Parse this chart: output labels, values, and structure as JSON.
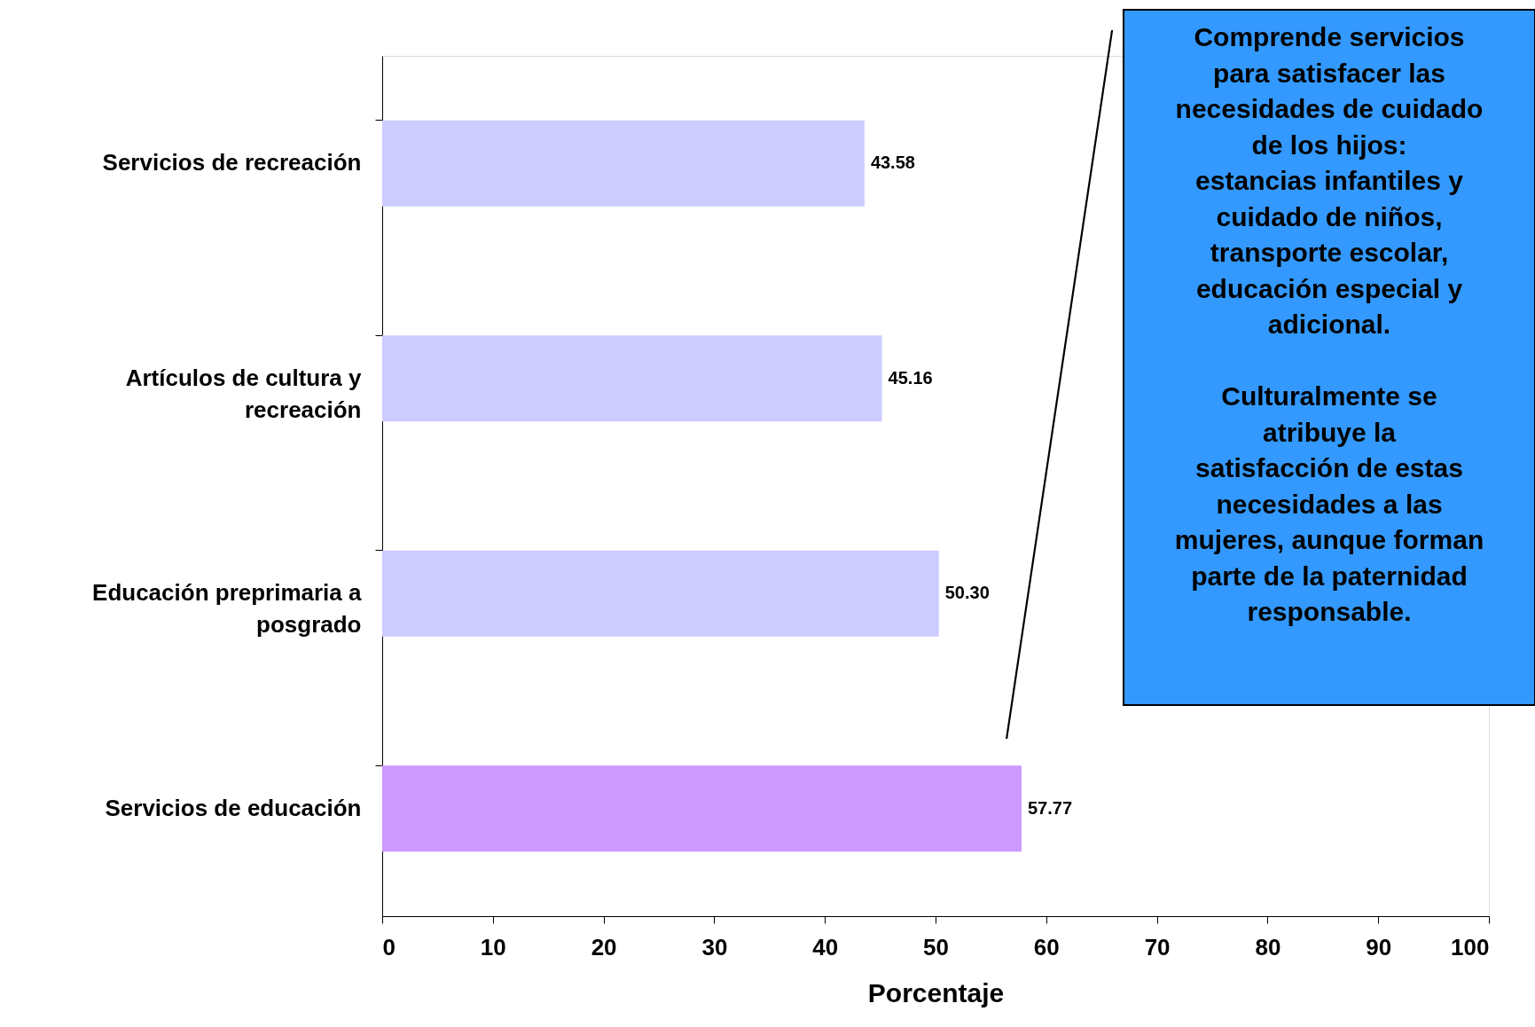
{
  "chart_data": {
    "type": "bar",
    "orientation": "horizontal",
    "xlabel": "Porcentaje",
    "categories": [
      "Servicios de recreación",
      "Artículos de cultura y recreación",
      "Educación preprimaria a posgrado",
      "Servicios de educación"
    ],
    "values": [
      43.58,
      45.16,
      50.3,
      57.77
    ],
    "colors": [
      "#ccccff",
      "#ccccff",
      "#ccccff",
      "#cc99ff"
    ],
    "xlim": [
      0,
      100
    ],
    "xticks": [
      0,
      10,
      20,
      30,
      40,
      50,
      60,
      70,
      80,
      90,
      100
    ],
    "value_labels": [
      "43.58",
      "45.16",
      "50.30",
      "57.77"
    ],
    "grid": false,
    "annotations": [
      "Comprende servicios para satisfacer las necesidades de cuidado de los hijos: estancias infantiles y cuidado de niños, transporte escolar, educación especial y adicional.",
      "Culturalmente se atribuye la satisfacción de estas necesidades a las mujeres, aunque forman parte de la paternidad responsable."
    ]
  }
}
